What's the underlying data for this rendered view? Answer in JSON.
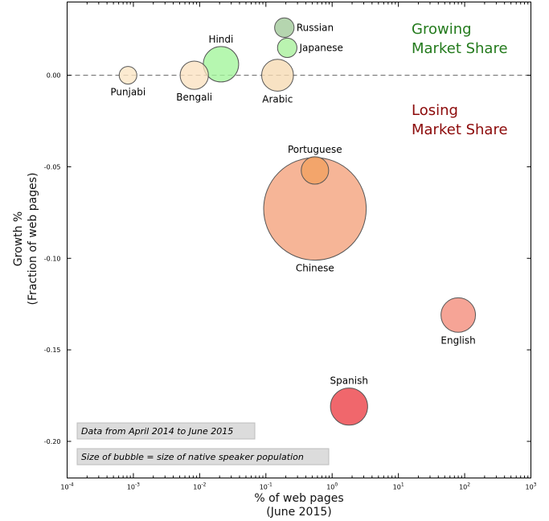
{
  "chart_data": {
    "type": "scatter",
    "subtype": "bubble",
    "xlabel_lines": [
      "% of web pages",
      "(June 2015)"
    ],
    "ylabel_lines": [
      "Growth %",
      "(Fraction of web pages)"
    ],
    "x_scale": "log",
    "xlim": [
      0.0001,
      1000
    ],
    "ylim": [
      -0.22,
      0.04
    ],
    "x_ticks": [
      {
        "base": "10",
        "exp": "-4",
        "v": 0.0001
      },
      {
        "base": "10",
        "exp": "-3",
        "v": 0.001
      },
      {
        "base": "10",
        "exp": "-2",
        "v": 0.01
      },
      {
        "base": "10",
        "exp": "-1",
        "v": 0.1
      },
      {
        "base": "10",
        "exp": "0",
        "v": 1
      },
      {
        "base": "10",
        "exp": "1",
        "v": 10
      },
      {
        "base": "10",
        "exp": "2",
        "v": 100
      },
      {
        "base": "10",
        "exp": "3",
        "v": 1000
      }
    ],
    "y_ticks": [
      "0.00",
      "-0.05",
      "-0.10",
      "-0.15",
      "-0.20"
    ],
    "y_tick_values": [
      0.0,
      -0.05,
      -0.1,
      -0.15,
      -0.2
    ],
    "reference_line_y": 0.0,
    "grid": false,
    "points": [
      {
        "name": "Punjabi",
        "x": 0.00083,
        "y": 0.0,
        "size": 1.0,
        "color": "#fbe5c4",
        "label_pos": "below"
      },
      {
        "name": "Bengali",
        "x": 0.0083,
        "y": 0.0,
        "size": 1.6,
        "color": "#fbe1c0",
        "label_pos": "below"
      },
      {
        "name": "Hindi",
        "x": 0.021,
        "y": 0.006,
        "size": 2.0,
        "color": "#a2f59a",
        "label_pos": "above"
      },
      {
        "name": "Arabic",
        "x": 0.15,
        "y": 0.0,
        "size": 1.8,
        "color": "#f6dab2",
        "label_pos": "below"
      },
      {
        "name": "Russian",
        "x": 0.19,
        "y": 0.026,
        "size": 1.1,
        "color": "#a0c998",
        "label_pos": "right"
      },
      {
        "name": "Japanese",
        "x": 0.21,
        "y": 0.015,
        "size": 1.1,
        "color": "#a6f09a",
        "label_pos": "right"
      },
      {
        "name": "Portuguese",
        "x": 0.55,
        "y": -0.052,
        "size": 1.55,
        "color": "#f2a05f",
        "label_pos": "above"
      },
      {
        "name": "Chinese",
        "x": 0.55,
        "y": -0.073,
        "size": 5.8,
        "color": "#f4a07a",
        "label_pos": "below"
      },
      {
        "name": "English",
        "x": 80,
        "y": -0.131,
        "size": 1.95,
        "color": "#f48a78",
        "label_pos": "below"
      },
      {
        "name": "Spanish",
        "x": 1.8,
        "y": -0.181,
        "size": 2.1,
        "color": "#ec3c42",
        "label_pos": "above"
      }
    ],
    "annotations": {
      "growing_lines": [
        "Growing",
        "Market Share"
      ],
      "growing_color": "#237a1c",
      "losing_lines": [
        "Losing",
        "Market Share"
      ],
      "losing_color": "#8c0a0a",
      "note_dates": "Data from April 2014 to June 2015",
      "note_size": "Size of bubble = size of native speaker population"
    }
  }
}
